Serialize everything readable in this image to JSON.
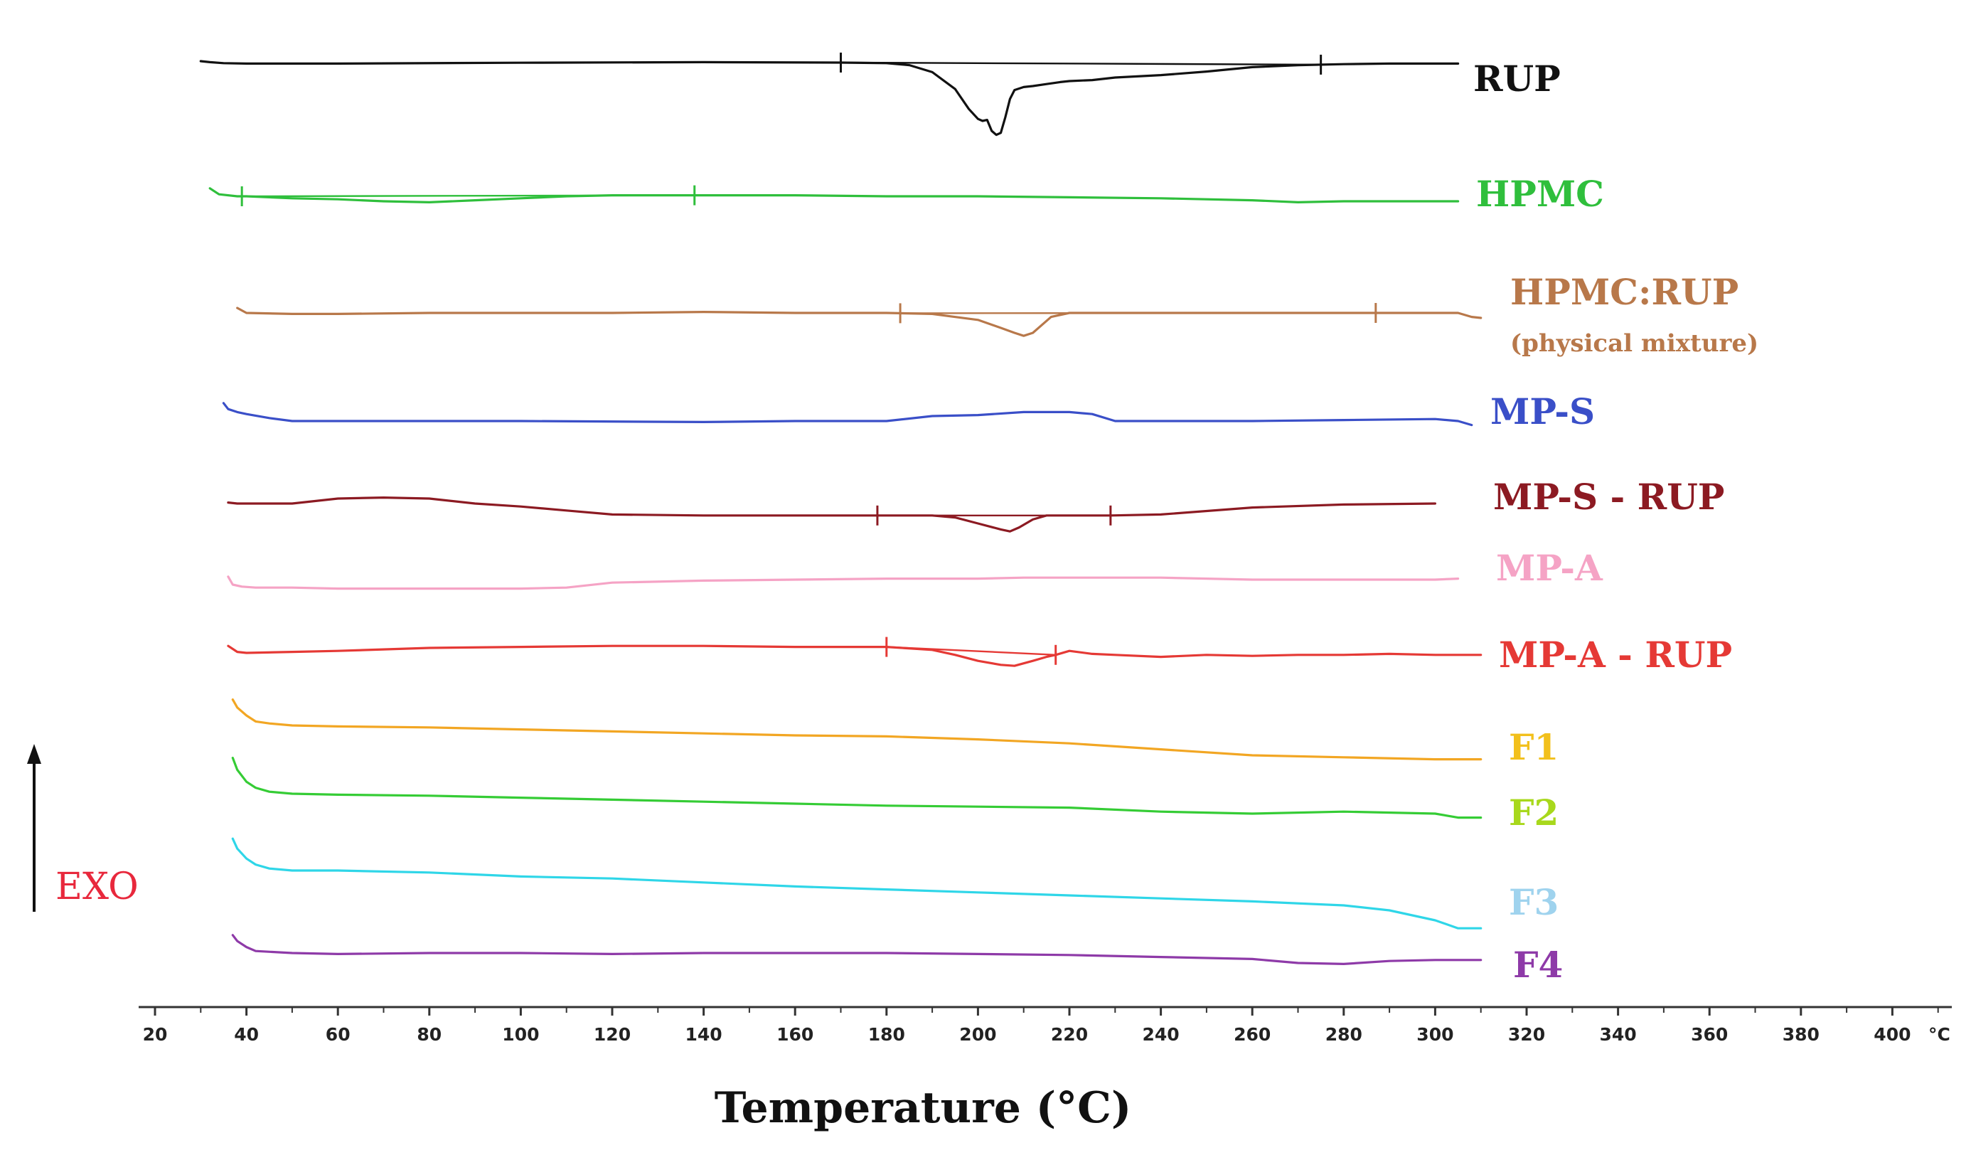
{
  "chart_data": {
    "type": "line",
    "title": "",
    "xlabel": "Temperature (°C)",
    "ylabel": "",
    "xlim": [
      20,
      400
    ],
    "x_unit_label": "°C",
    "x_ticks": [
      20,
      40,
      60,
      80,
      100,
      120,
      140,
      160,
      180,
      200,
      220,
      240,
      260,
      280,
      300,
      320,
      340,
      360,
      380,
      400
    ],
    "y_axis_indicator": "EXO",
    "y_axis_indicator_color": "#e8283c",
    "series": [
      {
        "name": "RUP",
        "color": "#111111",
        "baseline": 0.0,
        "x": [
          30,
          32,
          35,
          40,
          60,
          100,
          140,
          170,
          180,
          185,
          190,
          195,
          198,
          200,
          201,
          202,
          203,
          204,
          205,
          206,
          207,
          208,
          210,
          212,
          215,
          218,
          220,
          225,
          230,
          240,
          250,
          260,
          270,
          280,
          290,
          300,
          305
        ],
        "y": [
          0.0,
          -0.05,
          -0.1,
          -0.12,
          -0.12,
          -0.08,
          -0.05,
          -0.07,
          -0.1,
          -0.2,
          -0.55,
          -1.4,
          -2.4,
          -2.9,
          -3.0,
          -2.95,
          -3.5,
          -3.7,
          -3.6,
          -2.8,
          -1.9,
          -1.45,
          -1.3,
          -1.25,
          -1.15,
          -1.05,
          -1.0,
          -0.95,
          -0.82,
          -0.7,
          -0.52,
          -0.3,
          -0.2,
          -0.15,
          -0.12,
          -0.12,
          -0.12
        ],
        "events": [
          {
            "x": 170,
            "type": "onset"
          },
          {
            "x": 275,
            "type": "end"
          }
        ]
      },
      {
        "name": "HPMC",
        "color": "#2fbf3c",
        "baseline": 0.0,
        "x": [
          32,
          34,
          38,
          40,
          50,
          60,
          70,
          80,
          90,
          100,
          110,
          120,
          140,
          160,
          180,
          200,
          220,
          240,
          260,
          270,
          280,
          300,
          305
        ],
        "y": [
          0.4,
          0.1,
          0.0,
          0.0,
          -0.1,
          -0.15,
          -0.25,
          -0.3,
          -0.2,
          -0.1,
          0.0,
          0.05,
          0.05,
          0.05,
          0.0,
          0.0,
          -0.05,
          -0.1,
          -0.2,
          -0.3,
          -0.25,
          -0.25,
          -0.25
        ],
        "events": [
          {
            "x": 39,
            "type": "onset"
          },
          {
            "x": 138,
            "type": "end"
          }
        ]
      },
      {
        "name": "HPMC:RUP",
        "sublabel": "(physical mixture)",
        "color": "#b8784a",
        "baseline": 0.0,
        "x": [
          38,
          40,
          50,
          60,
          80,
          100,
          120,
          140,
          160,
          180,
          190,
          200,
          205,
          208,
          210,
          212,
          214,
          216,
          220,
          230,
          240,
          260,
          280,
          300,
          305,
          308,
          310
        ],
        "y": [
          0.25,
          0.0,
          -0.05,
          -0.05,
          0.0,
          0.0,
          0.0,
          0.05,
          0.0,
          0.0,
          -0.05,
          -0.35,
          -0.75,
          -1.0,
          -1.15,
          -1.0,
          -0.6,
          -0.2,
          0.0,
          0.0,
          0.0,
          0.0,
          0.0,
          0.0,
          0.0,
          -0.2,
          -0.25
        ],
        "events": [
          {
            "x": 183,
            "type": "onset"
          },
          {
            "x": 287,
            "type": "end"
          }
        ]
      },
      {
        "name": "MP-S",
        "color": "#3a4fc8",
        "baseline": 0.0,
        "x": [
          35,
          36,
          38,
          40,
          45,
          50,
          60,
          80,
          100,
          140,
          160,
          180,
          190,
          200,
          210,
          220,
          225,
          230,
          240,
          260,
          280,
          300,
          305,
          308
        ],
        "y": [
          0.9,
          0.6,
          0.45,
          0.35,
          0.15,
          0.0,
          0.0,
          0.0,
          0.0,
          -0.05,
          0.0,
          0.0,
          0.25,
          0.3,
          0.45,
          0.45,
          0.35,
          0.0,
          0.0,
          0.0,
          0.05,
          0.1,
          0.0,
          -0.2
        ],
        "events": []
      },
      {
        "name": "MP-S - RUP",
        "color": "#8c1a22",
        "baseline": 0.0,
        "x": [
          36,
          38,
          40,
          50,
          60,
          70,
          80,
          90,
          100,
          110,
          120,
          140,
          160,
          178,
          190,
          195,
          200,
          205,
          207,
          209,
          212,
          215,
          220,
          229,
          240,
          260,
          280,
          300
        ],
        "y": [
          0.05,
          0.0,
          0.0,
          0.0,
          0.25,
          0.3,
          0.25,
          0.0,
          -0.15,
          -0.35,
          -0.55,
          -0.6,
          -0.6,
          -0.6,
          -0.6,
          -0.7,
          -1.0,
          -1.3,
          -1.4,
          -1.2,
          -0.8,
          -0.6,
          -0.6,
          -0.6,
          -0.55,
          -0.2,
          -0.05,
          0.0
        ],
        "events": [
          {
            "x": 178,
            "type": "onset"
          },
          {
            "x": 229,
            "type": "end"
          }
        ]
      },
      {
        "name": "MP-A",
        "color": "#f5a3c5",
        "baseline": 0.0,
        "x": [
          36,
          37,
          39,
          42,
          50,
          60,
          80,
          100,
          110,
          120,
          140,
          160,
          180,
          200,
          210,
          220,
          240,
          260,
          280,
          300,
          305
        ],
        "y": [
          0.4,
          0.0,
          -0.1,
          -0.15,
          -0.15,
          -0.2,
          -0.2,
          -0.2,
          -0.15,
          0.1,
          0.2,
          0.25,
          0.3,
          0.3,
          0.35,
          0.35,
          0.35,
          0.25,
          0.25,
          0.25,
          0.3
        ],
        "events": []
      },
      {
        "name": "MP-A - RUP",
        "color": "#e53935",
        "baseline": 0.0,
        "x": [
          36,
          38,
          40,
          50,
          60,
          80,
          100,
          120,
          140,
          160,
          180,
          190,
          195,
          200,
          205,
          208,
          212,
          215,
          217,
          220,
          225,
          230,
          240,
          250,
          260,
          270,
          280,
          290,
          300,
          310
        ],
        "y": [
          0.35,
          0.05,
          0.0,
          0.05,
          0.1,
          0.25,
          0.3,
          0.35,
          0.35,
          0.3,
          0.3,
          0.15,
          -0.1,
          -0.4,
          -0.6,
          -0.65,
          -0.4,
          -0.2,
          -0.1,
          0.1,
          -0.05,
          -0.1,
          -0.2,
          -0.1,
          -0.15,
          -0.1,
          -0.1,
          -0.05,
          -0.1,
          -0.1
        ],
        "events": [
          {
            "x": 180,
            "type": "onset"
          },
          {
            "x": 217,
            "type": "end"
          }
        ]
      },
      {
        "name": "F1",
        "color": "#f2a623",
        "baseline": 0.0,
        "x": [
          37,
          38,
          40,
          42,
          45,
          50,
          60,
          80,
          100,
          120,
          140,
          160,
          180,
          200,
          220,
          240,
          260,
          280,
          300,
          310
        ],
        "y": [
          1.3,
          0.9,
          0.5,
          0.2,
          0.1,
          0.0,
          -0.05,
          -0.1,
          -0.2,
          -0.3,
          -0.4,
          -0.5,
          -0.55,
          -0.7,
          -0.9,
          -1.2,
          -1.5,
          -1.6,
          -1.7,
          -1.7
        ],
        "events": []
      },
      {
        "name": "F2",
        "color": "#35cc35",
        "baseline": 0.0,
        "x": [
          37,
          38,
          40,
          42,
          45,
          50,
          60,
          80,
          100,
          120,
          140,
          160,
          180,
          200,
          220,
          240,
          260,
          280,
          300,
          305,
          310
        ],
        "y": [
          1.8,
          1.2,
          0.6,
          0.3,
          0.1,
          0.0,
          -0.05,
          -0.1,
          -0.2,
          -0.3,
          -0.4,
          -0.5,
          -0.6,
          -0.65,
          -0.7,
          -0.9,
          -1.0,
          -0.9,
          -1.0,
          -1.2,
          -1.2
        ],
        "events": []
      },
      {
        "name": "F3",
        "color": "#2fd6e8",
        "baseline": 0.0,
        "x": [
          37,
          38,
          40,
          42,
          45,
          50,
          60,
          80,
          100,
          120,
          140,
          160,
          180,
          200,
          220,
          240,
          260,
          280,
          290,
          300,
          305,
          310
        ],
        "y": [
          1.6,
          1.1,
          0.6,
          0.3,
          0.1,
          0.0,
          0.0,
          -0.1,
          -0.3,
          -0.4,
          -0.6,
          -0.8,
          -0.95,
          -1.1,
          -1.25,
          -1.4,
          -1.55,
          -1.75,
          -2.0,
          -2.5,
          -2.9,
          -2.9
        ],
        "events": []
      },
      {
        "name": "F4",
        "color": "#8e3aa8",
        "baseline": 0.0,
        "x": [
          37,
          38,
          40,
          42,
          50,
          60,
          80,
          100,
          120,
          140,
          160,
          180,
          200,
          220,
          240,
          260,
          270,
          280,
          290,
          300,
          310
        ],
        "y": [
          0.9,
          0.6,
          0.3,
          0.1,
          0.0,
          -0.05,
          0.0,
          0.0,
          -0.05,
          0.0,
          0.0,
          0.0,
          -0.05,
          -0.1,
          -0.2,
          -0.3,
          -0.5,
          -0.55,
          -0.4,
          -0.35,
          -0.35
        ],
        "events": []
      }
    ],
    "label_colors": {
      "RUP": "#111111",
      "HPMC": "#2fbf3c",
      "HPMC:RUP": "#b8784a",
      "MP-S": "#3a4fc8",
      "MP-S - RUP": "#8c1a22",
      "MP-A": "#f5a3c5",
      "MP-A - RUP": "#e53935",
      "F1": "#f2c01c",
      "F2": "#a8d81c",
      "F3": "#9fd3ee",
      "F4": "#8e3aa8"
    }
  }
}
